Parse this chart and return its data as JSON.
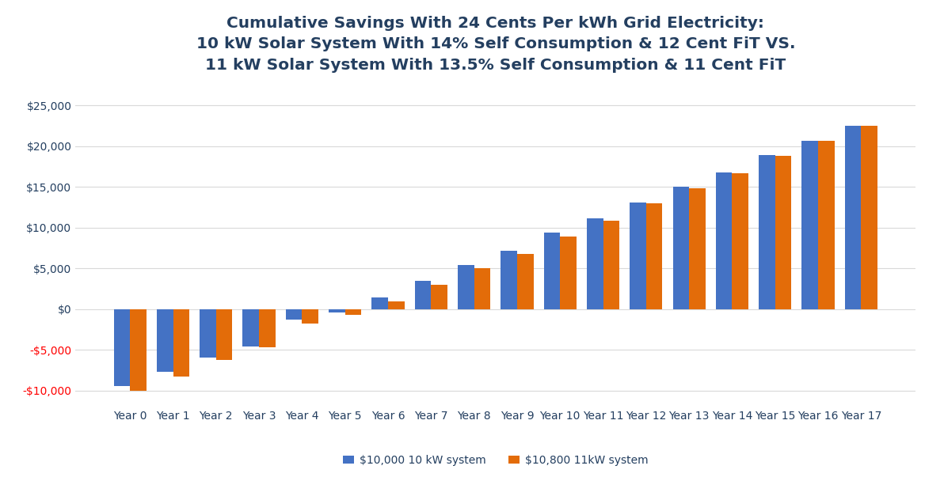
{
  "title": "Cumulative Savings With 24 Cents Per kWh Grid Electricity:\n10 kW Solar System With 14% Self Consumption & 12 Cent FiT VS.\n11 kW Solar System With 13.5% Self Consumption & 11 Cent FiT",
  "categories": [
    "Year 0",
    "Year 1",
    "Year 2",
    "Year 3",
    "Year 4",
    "Year 5",
    "Year 6",
    "Year 7",
    "Year 8",
    "Year 9",
    "Year 10",
    "Year 11",
    "Year 12",
    "Year 13",
    "Year 14",
    "Year 15",
    "Year 16",
    "Year 17"
  ],
  "blue_values": [
    -9500,
    -7700,
    -6000,
    -4600,
    -1300,
    -400,
    1400,
    3500,
    5400,
    7200,
    9400,
    11100,
    13100,
    15000,
    16800,
    18900,
    20700,
    22500
  ],
  "orange_values": [
    -10000,
    -8300,
    -6300,
    -4700,
    -1800,
    -700,
    900,
    3000,
    5000,
    6800,
    8900,
    10900,
    13000,
    14800,
    16700,
    18800,
    20700,
    22500
  ],
  "blue_color": "#4472C4",
  "orange_color": "#E36C09",
  "legend_labels": [
    "$10,000 10 kW system",
    "$10,800 11kW system"
  ],
  "ylim": [
    -12000,
    27000
  ],
  "yticks": [
    -10000,
    -5000,
    0,
    5000,
    10000,
    15000,
    20000,
    25000
  ],
  "background_color": "#FFFFFF",
  "title_color": "#243F60",
  "tick_color": "#4F6228",
  "axis_tick_color": "#243F60",
  "grid_color": "#D9D9D9",
  "title_fontsize": 14.5,
  "tick_fontsize": 10,
  "bar_width": 0.38,
  "figsize": [
    11.92,
    6.27
  ],
  "dpi": 100
}
